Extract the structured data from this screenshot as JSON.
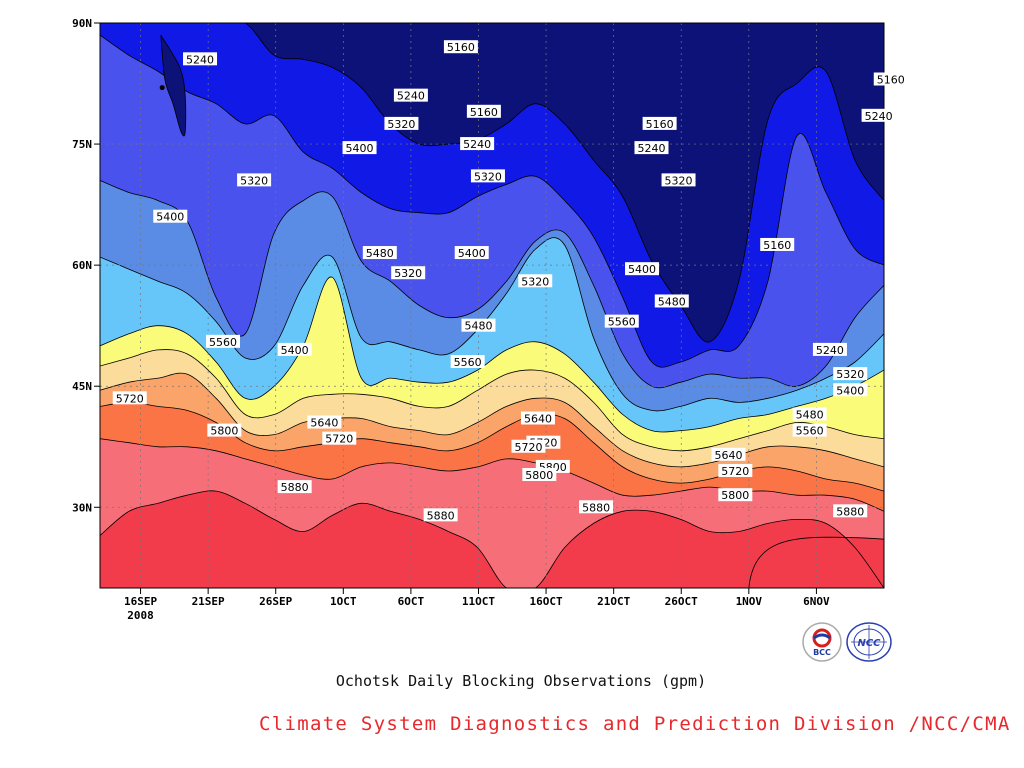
{
  "chart_data": {
    "type": "contour",
    "title": "Ochotsk Daily Blocking Observations (gpm)",
    "xlabel": "",
    "ylabel": "",
    "x_tick_labels": [
      "16SEP\n2008",
      "21SEP",
      "26SEP",
      "1OCT",
      "6OCT",
      "11OCT",
      "16OCT",
      "21OCT",
      "26OCT",
      "1NOV",
      "6NOV"
    ],
    "y_tick_labels": [
      "30N",
      "45N",
      "60N",
      "75N",
      "90N"
    ],
    "y_ticks": [
      30,
      45,
      60,
      75,
      90
    ],
    "ylim": [
      20,
      90
    ],
    "grid": true,
    "levels": [
      5160,
      5240,
      5320,
      5400,
      5480,
      5560,
      5640,
      5720,
      5800,
      5880
    ],
    "colors": [
      "#0c1278",
      "#1119e6",
      "#4a52ee",
      "#5a8ce6",
      "#66c6fa",
      "#fbfb7a",
      "#fbdc9a",
      "#fba46a",
      "#fa7446",
      "#f66e78",
      "#f23c4b"
    ],
    "contours": [
      {
        "level": 5880,
        "lat": [
          26.5,
          29.5,
          30.5,
          31.5,
          32.0,
          30.5,
          28.5,
          27.0,
          29.0,
          30.5,
          29.5,
          28.5,
          27.0,
          25.0,
          20.0,
          20.0,
          25.0,
          28.0,
          29.5,
          29.5,
          28.5,
          27.0,
          27.0,
          28.0,
          28.5,
          28.0,
          25.0,
          20.0
        ]
      },
      {
        "level": 5800,
        "lat": [
          38.5,
          38.0,
          37.5,
          37.5,
          37.0,
          36.0,
          35.0,
          34.0,
          33.5,
          35.0,
          35.5,
          35.0,
          34.5,
          35.0,
          36.0,
          35.5,
          34.5,
          33.0,
          31.5,
          31.5,
          32.0,
          32.5,
          32.0,
          32.0,
          31.5,
          31.5,
          31.0,
          29.5
        ]
      },
      {
        "level": 5720,
        "lat": [
          42.5,
          43.0,
          42.5,
          42.0,
          40.5,
          38.0,
          37.0,
          37.5,
          38.0,
          38.5,
          38.0,
          37.5,
          37.0,
          38.0,
          40.0,
          41.5,
          41.0,
          38.0,
          35.0,
          33.5,
          33.0,
          33.5,
          34.5,
          35.0,
          34.5,
          33.5,
          33.0,
          32.0
        ]
      },
      {
        "level": 5640,
        "lat": [
          44.5,
          45.5,
          46.0,
          46.5,
          43.5,
          39.5,
          39.0,
          40.5,
          41.0,
          41.0,
          40.0,
          39.5,
          39.0,
          40.5,
          42.5,
          43.5,
          43.0,
          40.0,
          37.0,
          35.5,
          35.0,
          35.5,
          36.5,
          37.5,
          37.5,
          37.0,
          36.0,
          35.0
        ]
      },
      {
        "level": 5560,
        "lat": [
          47.5,
          48.5,
          49.5,
          49.0,
          46.0,
          41.5,
          41.5,
          43.5,
          44.0,
          44.0,
          43.5,
          42.5,
          42.5,
          44.5,
          46.5,
          47.0,
          46.0,
          43.0,
          39.0,
          37.5,
          37.0,
          37.5,
          38.5,
          39.5,
          40.5,
          40.0,
          39.0,
          38.5
        ]
      },
      {
        "level": 5480,
        "lat": [
          50.0,
          51.5,
          52.5,
          51.5,
          48.0,
          43.5,
          45.0,
          50.0,
          58.5,
          46.0,
          46.0,
          45.5,
          45.5,
          47.0,
          49.5,
          50.5,
          49.0,
          45.5,
          41.5,
          39.5,
          39.5,
          40.0,
          41.0,
          41.5,
          42.5,
          43.5,
          45.0,
          47.0
        ]
      },
      {
        "level": 5400,
        "lat": [
          61.0,
          59.5,
          58.0,
          56.5,
          53.0,
          48.5,
          50.0,
          57.5,
          61.0,
          51.0,
          50.5,
          49.5,
          49.0,
          52.0,
          56.5,
          62.0,
          62.5,
          51.0,
          44.0,
          42.0,
          42.5,
          43.5,
          43.0,
          43.5,
          44.5,
          46.0,
          48.0,
          51.5
        ]
      },
      {
        "level": 5320,
        "lat": [
          70.5,
          69.0,
          68.0,
          65.5,
          56.0,
          51.5,
          64.0,
          68.0,
          68.5,
          60.5,
          58.0,
          55.0,
          53.5,
          54.5,
          58.0,
          63.0,
          64.0,
          57.5,
          49.0,
          45.0,
          45.5,
          46.5,
          46.0,
          46.0,
          45.0,
          47.5,
          53.5,
          57.5
        ]
      },
      {
        "level": 5240,
        "lat": [
          88.5,
          86.0,
          84.0,
          81.5,
          80.0,
          77.5,
          78.5,
          74.0,
          72.0,
          69.0,
          67.0,
          66.5,
          66.5,
          68.5,
          70.0,
          71.0,
          68.0,
          63.5,
          56.0,
          48.0,
          48.0,
          49.5,
          50.0,
          58.0,
          76.0,
          69.0,
          62.0,
          60.0
        ]
      },
      {
        "level": 5160,
        "lat": [
          90.0,
          90.0,
          90.0,
          90.0,
          90.0,
          90.0,
          86.0,
          85.5,
          84.5,
          82.0,
          77.5,
          75.0,
          75.0,
          75.5,
          77.5,
          80.0,
          77.5,
          73.0,
          68.5,
          60.5,
          55.0,
          50.5,
          58.0,
          78.0,
          82.5,
          84.0,
          73.0,
          68.0
        ]
      }
    ],
    "cells": [
      {
        "from": 45,
        "to": 60,
        "lat_bottom": 20,
        "lat_top": 26.0,
        "level": 5880
      }
    ],
    "low_centers": [
      {
        "level": 5160,
        "lat": [
          88.5,
          83.0,
          80.0,
          76.5,
          76.5,
          81.0,
          84.5
        ],
        "x": [
          1.0,
          1.4,
          2.1,
          2.6,
          3.0,
          3.3,
          3.2
        ],
        "day": [
          1.5,
          1.8,
          2.4,
          3.0,
          3.3,
          3.3,
          2.9
        ]
      }
    ],
    "contour_labels": [
      {
        "text": "5240",
        "day": 4.4,
        "lat": 85.5
      },
      {
        "text": "5160",
        "day": 23.7,
        "lat": 87.0
      },
      {
        "text": "5240",
        "day": 20.0,
        "lat": 81.0
      },
      {
        "text": "5320",
        "day": 19.3,
        "lat": 77.5
      },
      {
        "text": "5400",
        "day": 16.2,
        "lat": 74.5
      },
      {
        "text": "5320",
        "day": 8.4,
        "lat": 70.5
      },
      {
        "text": "5400",
        "day": 2.2,
        "lat": 66.0
      },
      {
        "text": "5480",
        "day": 17.7,
        "lat": 61.5
      },
      {
        "text": "5400",
        "day": 11.4,
        "lat": 49.5
      },
      {
        "text": "5560",
        "day": 6.1,
        "lat": 50.5
      },
      {
        "text": "5720",
        "day": -0.8,
        "lat": 43.5
      },
      {
        "text": "5800",
        "day": 6.2,
        "lat": 39.5
      },
      {
        "text": "5640",
        "day": 13.6,
        "lat": 40.5
      },
      {
        "text": "5720",
        "day": 14.7,
        "lat": 38.5
      },
      {
        "text": "5880",
        "day": 11.4,
        "lat": 32.5
      },
      {
        "text": "5480",
        "day": 25.0,
        "lat": 52.5
      },
      {
        "text": "5560",
        "day": 24.2,
        "lat": 48.0
      },
      {
        "text": "5640",
        "day": 29.4,
        "lat": 41.0
      },
      {
        "text": "5720",
        "day": 29.8,
        "lat": 38.0
      },
      {
        "text": "5800",
        "day": 30.5,
        "lat": 35.0
      },
      {
        "text": "5880",
        "day": 33.7,
        "lat": 30.0
      },
      {
        "text": "5320",
        "day": 29.2,
        "lat": 58.0
      },
      {
        "text": "5400",
        "day": 37.1,
        "lat": 59.5
      },
      {
        "text": "5160",
        "day": 38.4,
        "lat": 77.5
      },
      {
        "text": "5240",
        "day": 37.8,
        "lat": 74.5
      },
      {
        "text": "5320",
        "day": 39.8,
        "lat": 70.5
      },
      {
        "text": "5480",
        "day": 39.3,
        "lat": 55.5
      },
      {
        "text": "5560",
        "day": 35.6,
        "lat": 53.0
      },
      {
        "text": "5160",
        "day": 47.1,
        "lat": 62.5
      },
      {
        "text": "5240",
        "day": 51.0,
        "lat": 49.5
      },
      {
        "text": "5320",
        "day": 52.5,
        "lat": 46.5
      },
      {
        "text": "5400",
        "day": 52.5,
        "lat": 44.5
      },
      {
        "text": "5480",
        "day": 49.5,
        "lat": 41.5
      },
      {
        "text": "5560",
        "day": 49.5,
        "lat": 39.5
      },
      {
        "text": "5640",
        "day": 43.5,
        "lat": 36.5
      },
      {
        "text": "5720",
        "day": 44.0,
        "lat": 34.5
      },
      {
        "text": "5800",
        "day": 44.0,
        "lat": 31.5
      },
      {
        "text": "5880",
        "day": 52.5,
        "lat": 29.5
      },
      {
        "text": "5880",
        "day": 22.2,
        "lat": 29.0
      },
      {
        "text": "5800",
        "day": 29.5,
        "lat": 34.0
      },
      {
        "text": "5720",
        "day": 28.7,
        "lat": 37.5
      },
      {
        "text": "5160",
        "day": 55.5,
        "lat": 83.0
      },
      {
        "text": "5240",
        "day": 54.6,
        "lat": 78.5
      },
      {
        "text": "5240",
        "day": 24.9,
        "lat": 75.0
      },
      {
        "text": "5160",
        "day": 25.4,
        "lat": 79.0
      },
      {
        "text": "5320",
        "day": 25.7,
        "lat": 71.0
      },
      {
        "text": "5400",
        "day": 24.5,
        "lat": 61.5
      },
      {
        "text": "5320",
        "day": 19.8,
        "lat": 59.0
      }
    ]
  },
  "title": "Ochotsk Daily Blocking Observations (gpm)",
  "credit": "Climate System Diagnostics and Prediction Division /NCC/CMA",
  "logos": {
    "bcc": "BCC",
    "ncc": "NCC"
  }
}
